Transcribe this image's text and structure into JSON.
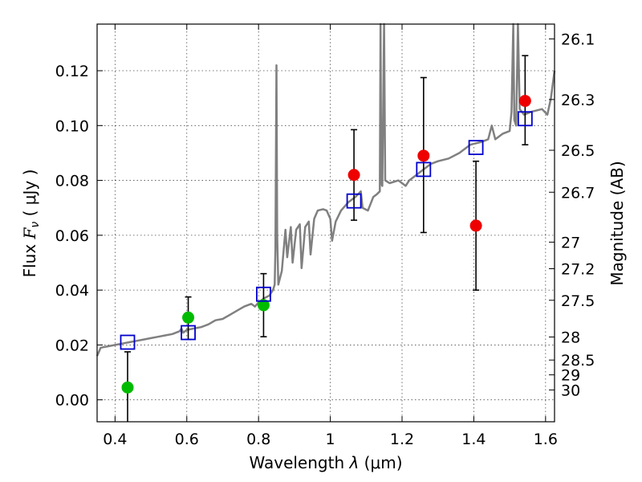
{
  "chart_data": {
    "type": "scatter",
    "xlabel_prefix": "Wavelength  ",
    "xlabel_lambda": "λ",
    "xlabel_unit": " (μm)",
    "ylabel_prefix": "Flux  ",
    "ylabel_symbol": "F",
    "ylabel_sub": "ν",
    "ylabel_unit": "  ( μJy )",
    "y2label": "Magnitude (AB)",
    "xlim": [
      0.35,
      1.625
    ],
    "ylim": [
      -0.008,
      0.137
    ],
    "x_ticks": [
      0.4,
      0.6,
      0.8,
      1.0,
      1.2,
      1.4,
      1.6
    ],
    "x_tick_labels": [
      "0.4",
      "0.6",
      "0.8",
      "1",
      "1.2",
      "1.4",
      "1.6"
    ],
    "y_ticks": [
      0.0,
      0.02,
      0.04,
      0.06,
      0.08,
      0.1,
      0.12
    ],
    "y_tick_labels": [
      "0.00",
      "0.02",
      "0.04",
      "0.06",
      "0.08",
      "0.10",
      "0.12"
    ],
    "y2_ticks": [
      {
        "label": "26.1",
        "flux": 0.1316
      },
      {
        "label": "26.3",
        "flux": 0.1095
      },
      {
        "label": "26.5",
        "flux": 0.091
      },
      {
        "label": "26.7",
        "flux": 0.0757
      },
      {
        "label": "27",
        "flux": 0.0575
      },
      {
        "label": "27.2",
        "flux": 0.0478
      },
      {
        "label": "27.5",
        "flux": 0.0363
      },
      {
        "label": "28",
        "flux": 0.0229
      },
      {
        "label": "28.5",
        "flux": 0.0145
      },
      {
        "label": "29",
        "flux": 0.0091
      },
      {
        "label": "30",
        "flux": 0.0036
      }
    ],
    "colors": {
      "model": "#808080",
      "green": "#00bb00",
      "red": "#ee0000",
      "square": "#0000cc",
      "errorbar": "#000000",
      "grid": "#000000"
    },
    "series": [
      {
        "name": "model spectrum",
        "style": "line",
        "points": [
          [
            0.35,
            0.016
          ],
          [
            0.36,
            0.019
          ],
          [
            0.38,
            0.0195
          ],
          [
            0.4,
            0.02
          ],
          [
            0.42,
            0.0205
          ],
          [
            0.44,
            0.021
          ],
          [
            0.46,
            0.0215
          ],
          [
            0.48,
            0.022
          ],
          [
            0.5,
            0.0225
          ],
          [
            0.52,
            0.023
          ],
          [
            0.54,
            0.0235
          ],
          [
            0.56,
            0.024
          ],
          [
            0.58,
            0.025
          ],
          [
            0.585,
            0.026
          ],
          [
            0.59,
            0.0245
          ],
          [
            0.6,
            0.0255
          ],
          [
            0.62,
            0.026
          ],
          [
            0.64,
            0.0265
          ],
          [
            0.66,
            0.0275
          ],
          [
            0.68,
            0.029
          ],
          [
            0.7,
            0.0295
          ],
          [
            0.72,
            0.031
          ],
          [
            0.74,
            0.0325
          ],
          [
            0.76,
            0.034
          ],
          [
            0.78,
            0.035
          ],
          [
            0.79,
            0.034
          ],
          [
            0.8,
            0.0355
          ],
          [
            0.815,
            0.037
          ],
          [
            0.83,
            0.038
          ],
          [
            0.84,
            0.04
          ],
          [
            0.845,
            0.042
          ],
          [
            0.847,
            0.055
          ],
          [
            0.85,
            0.122
          ],
          [
            0.852,
            0.06
          ],
          [
            0.855,
            0.042
          ],
          [
            0.865,
            0.047
          ],
          [
            0.875,
            0.062
          ],
          [
            0.88,
            0.052
          ],
          [
            0.89,
            0.063
          ],
          [
            0.895,
            0.05
          ],
          [
            0.905,
            0.062
          ],
          [
            0.915,
            0.064
          ],
          [
            0.92,
            0.048
          ],
          [
            0.93,
            0.063
          ],
          [
            0.94,
            0.065
          ],
          [
            0.945,
            0.053
          ],
          [
            0.955,
            0.066
          ],
          [
            0.965,
            0.069
          ],
          [
            0.98,
            0.0695
          ],
          [
            0.99,
            0.069
          ],
          [
            1.0,
            0.066
          ],
          [
            1.005,
            0.058
          ],
          [
            1.015,
            0.065
          ],
          [
            1.03,
            0.069
          ],
          [
            1.05,
            0.072
          ],
          [
            1.07,
            0.074
          ],
          [
            1.085,
            0.076
          ],
          [
            1.09,
            0.07
          ],
          [
            1.105,
            0.069
          ],
          [
            1.12,
            0.074
          ],
          [
            1.13,
            0.075
          ],
          [
            1.138,
            0.076
          ],
          [
            1.14,
            0.14
          ],
          [
            1.142,
            0.079
          ],
          [
            1.145,
            0.078
          ],
          [
            1.15,
            0.14
          ],
          [
            1.153,
            0.08
          ],
          [
            1.165,
            0.079
          ],
          [
            1.19,
            0.08
          ],
          [
            1.21,
            0.078
          ],
          [
            1.22,
            0.08
          ],
          [
            1.24,
            0.082
          ],
          [
            1.26,
            0.084
          ],
          [
            1.28,
            0.086
          ],
          [
            1.3,
            0.087
          ],
          [
            1.33,
            0.088
          ],
          [
            1.36,
            0.09
          ],
          [
            1.39,
            0.093
          ],
          [
            1.42,
            0.094
          ],
          [
            1.44,
            0.095
          ],
          [
            1.45,
            0.1
          ],
          [
            1.46,
            0.095
          ],
          [
            1.48,
            0.097
          ],
          [
            1.5,
            0.098
          ],
          [
            1.505,
            0.105
          ],
          [
            1.51,
            0.14
          ],
          [
            1.513,
            0.102
          ],
          [
            1.518,
            0.1
          ],
          [
            1.523,
            0.14
          ],
          [
            1.528,
            0.106
          ],
          [
            1.54,
            0.104
          ],
          [
            1.56,
            0.105
          ],
          [
            1.59,
            0.106
          ],
          [
            1.605,
            0.104
          ],
          [
            1.615,
            0.11
          ],
          [
            1.625,
            0.12
          ]
        ]
      },
      {
        "name": "observed (green)",
        "style": "marker-circle",
        "x": [
          0.435,
          0.604,
          0.814
        ],
        "y": [
          0.0045,
          0.03,
          0.0345
        ],
        "err_lo": [
          0.0245,
          0.008,
          0.0115
        ],
        "err_hi": [
          0.013,
          0.0075,
          0.0115
        ]
      },
      {
        "name": "observed (red)",
        "style": "marker-circle",
        "x": [
          1.066,
          1.26,
          1.406,
          1.543
        ],
        "y": [
          0.082,
          0.089,
          0.0635,
          0.109
        ],
        "err_lo": [
          0.0165,
          0.028,
          0.0235,
          0.016
        ],
        "err_hi": [
          0.0165,
          0.0285,
          0.0235,
          0.0165
        ]
      },
      {
        "name": "model photometry",
        "style": "marker-square",
        "x": [
          0.435,
          0.604,
          0.814,
          1.066,
          1.26,
          1.406,
          1.543
        ],
        "y": [
          0.021,
          0.0245,
          0.0385,
          0.0725,
          0.084,
          0.092,
          0.1025
        ]
      }
    ]
  }
}
